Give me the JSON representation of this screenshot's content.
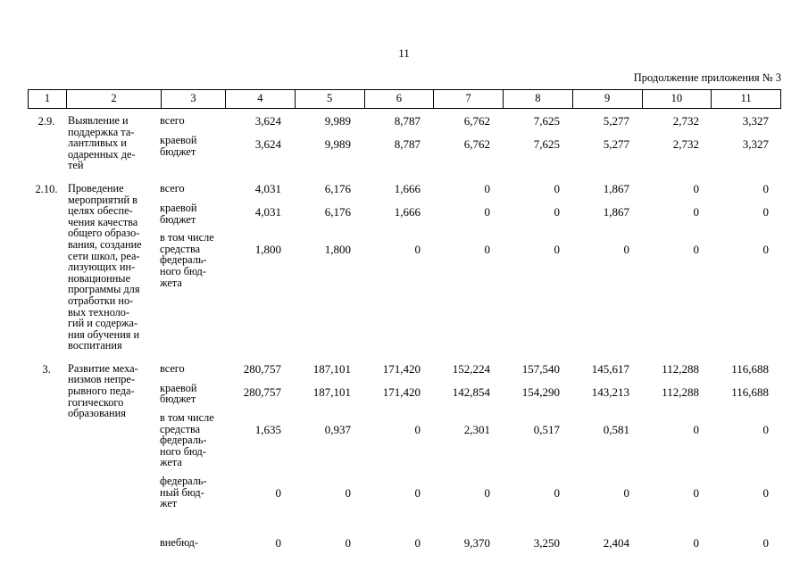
{
  "page": {
    "number": "11",
    "caption": "Продолжение приложения № 3"
  },
  "table": {
    "header": [
      "1",
      "2",
      "3",
      "4",
      "5",
      "6",
      "7",
      "8",
      "9",
      "10",
      "11"
    ],
    "rows": [
      {
        "num": "2.9.",
        "name": "Выявление и\nподдержка та-\nлантливых и\nодаренных де-\nтей",
        "subrows": [
          {
            "label": "всего",
            "values": [
              "3,624",
              "9,989",
              "8,787",
              "6,762",
              "7,625",
              "5,277",
              "2,732",
              "3,327"
            ]
          },
          {
            "label": "краевой\nбюджет",
            "values": [
              "3,624",
              "9,989",
              "8,787",
              "6,762",
              "7,625",
              "5,277",
              "2,732",
              "3,327"
            ]
          }
        ]
      },
      {
        "num": "2.10.",
        "name": "Проведение\nмероприятий в\nцелях обеспе-\nчения качества\nобщего образо-\nвания, создание\nсети школ, реа-\nлизующих ин-\nновационные\nпрограммы для\nотработки но-\nвых техноло-\nгий и содержа-\nния обучения и\nвоспитания",
        "subrows": [
          {
            "label": "всего",
            "values": [
              "4,031",
              "6,176",
              "1,666",
              "0",
              "0",
              "1,867",
              "0",
              "0"
            ]
          },
          {
            "label": "краевой\nбюджет",
            "values": [
              "4,031",
              "6,176",
              "1,666",
              "0",
              "0",
              "1,867",
              "0",
              "0"
            ]
          },
          {
            "label": "в том числе\nсредства\nфедераль-\nного бюд-\nжета",
            "values": [
              "1,800",
              "1,800",
              "0",
              "0",
              "0",
              "0",
              "0",
              "0"
            ]
          }
        ]
      },
      {
        "num": "3.",
        "name": "Развитие меха-\nнизмов непре-\nрывного педа-\nгогического\nобразования",
        "subrows": [
          {
            "label": "всего",
            "values": [
              "280,757",
              "187,101",
              "171,420",
              "152,224",
              "157,540",
              "145,617",
              "112,288",
              "116,688"
            ]
          },
          {
            "label": "краевой\nбюджет",
            "values": [
              "280,757",
              "187,101",
              "171,420",
              "142,854",
              "154,290",
              "143,213",
              "112,288",
              "116,688"
            ]
          },
          {
            "label": "в том числе\nсредства\nфедераль-\nного бюд-\nжета",
            "values": [
              "1,635",
              "0,937",
              "0",
              "2,301",
              "0,517",
              "0,581",
              "0",
              "0"
            ]
          },
          {
            "label": "федераль-\nный бюд-\nжет",
            "values": [
              "0",
              "0",
              "0",
              "0",
              "0",
              "0",
              "0",
              "0"
            ]
          },
          {
            "label": "внебюд-",
            "gap_before": true,
            "values": [
              "0",
              "0",
              "0",
              "9,370",
              "3,250",
              "2,404",
              "0",
              "0"
            ]
          }
        ]
      }
    ]
  }
}
